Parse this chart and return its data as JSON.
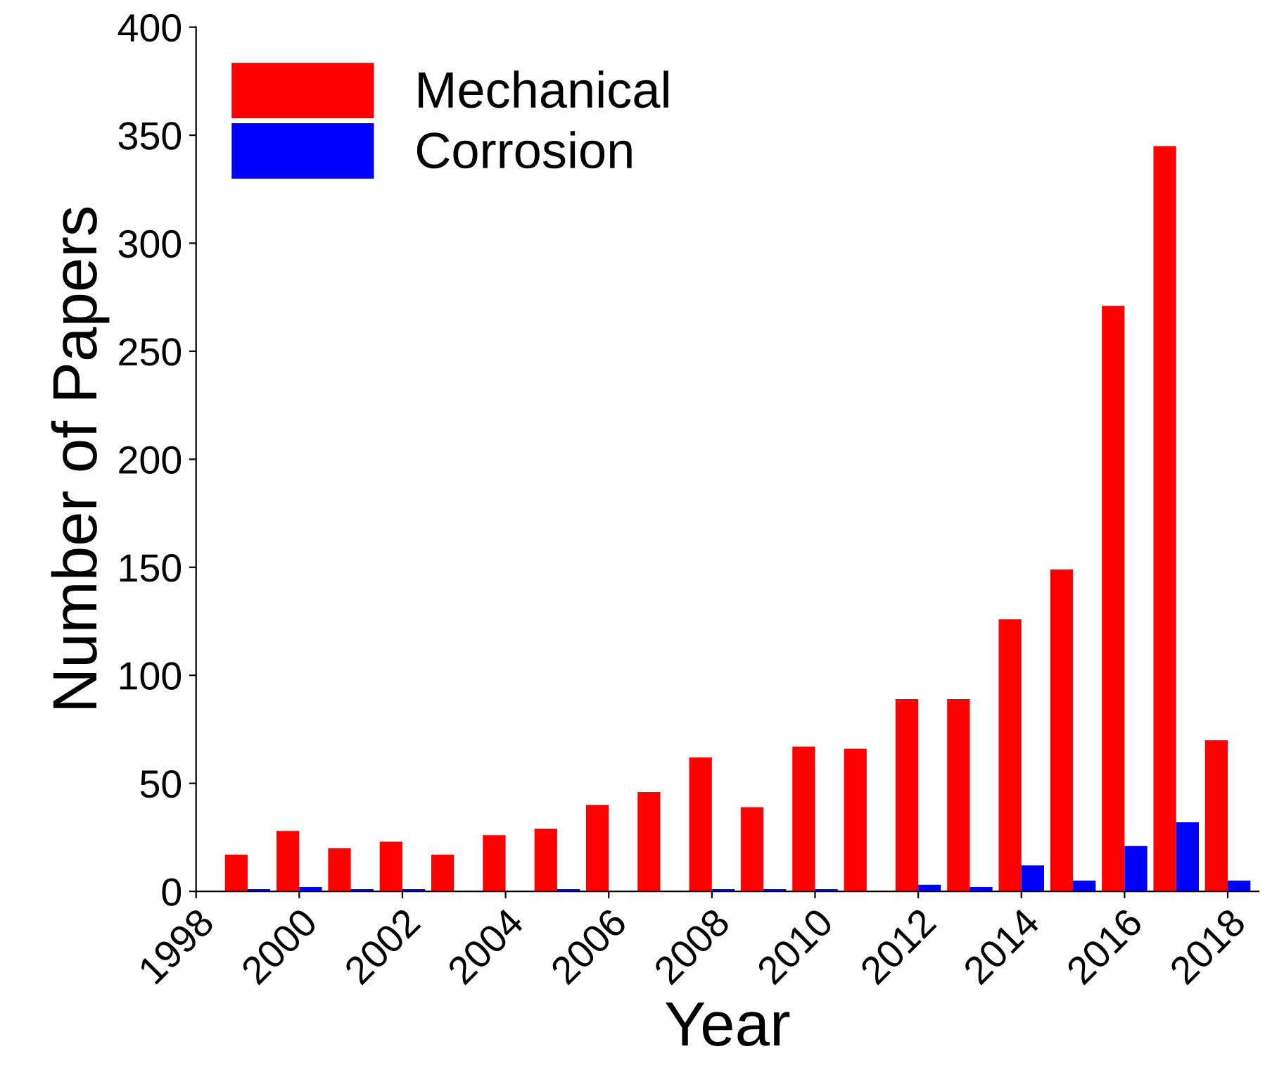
{
  "chart_data": {
    "type": "bar",
    "xlabel": "Year",
    "ylabel": "Number of Papers",
    "x": [
      1999,
      2000,
      2001,
      2002,
      2003,
      2004,
      2005,
      2006,
      2007,
      2008,
      2009,
      2010,
      2011,
      2012,
      2013,
      2014,
      2015,
      2016,
      2017,
      2018
    ],
    "series": [
      {
        "name": "Mechanical",
        "color": "#ff0000",
        "values": [
          17,
          28,
          20,
          23,
          17,
          26,
          29,
          40,
          46,
          62,
          39,
          67,
          66,
          89,
          89,
          126,
          149,
          271,
          345,
          70
        ]
      },
      {
        "name": "Corrosion",
        "color": "#0000ff",
        "values": [
          1,
          2,
          1,
          1,
          0,
          0,
          1,
          0,
          0,
          1,
          1,
          1,
          0,
          3,
          2,
          12,
          5,
          21,
          32,
          5
        ]
      }
    ],
    "xlim": [
      1998,
      2018.6
    ],
    "xticks": [
      1998,
      2000,
      2002,
      2004,
      2006,
      2008,
      2010,
      2012,
      2014,
      2016,
      2018
    ],
    "ylim": [
      0,
      400
    ],
    "yticks": [
      0,
      50,
      100,
      150,
      200,
      250,
      300,
      350,
      400
    ],
    "grid": false,
    "legend": "top left"
  }
}
